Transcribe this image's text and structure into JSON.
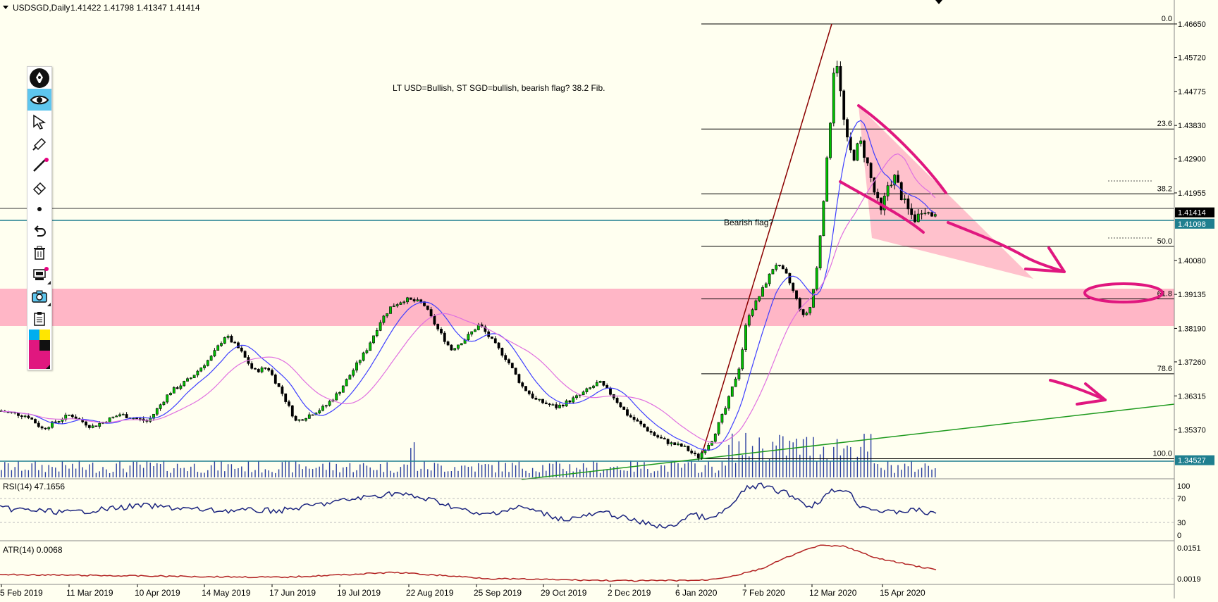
{
  "header": {
    "triangle_icon": "triangle-down-icon",
    "symbol": "USDSGD,Daily",
    "ohlc": "1.41422 1.41798 1.41347 1.41414"
  },
  "annotations": {
    "main_note": "LT USD=Bullish, ST SGD=bullish, bearish flag? 38.2 Fib.",
    "flag_note": "Bearish flag?"
  },
  "price_axis": {
    "ticks": [
      "1.46650",
      "1.45720",
      "1.44775",
      "1.43830",
      "1.42900",
      "1.41955",
      "1.41414",
      "1.41098",
      "1.40080",
      "1.39135",
      "1.38190",
      "1.37260",
      "1.36315",
      "1.35370",
      "1.34527"
    ],
    "current_price_label": "1.41414",
    "line_price_label": "1.41098",
    "bottom_price_label": "1.34527"
  },
  "fibonacci": [
    {
      "level": "0.0",
      "price": 1.4665
    },
    {
      "level": "23.6",
      "price": 1.4373
    },
    {
      "level": "38.2",
      "price": 1.4193
    },
    {
      "level": "50.0",
      "price": 1.4047
    },
    {
      "level": "61.8",
      "price": 1.3901
    },
    {
      "level": "78.6",
      "price": 1.3693
    },
    {
      "level": "100.0",
      "price": 1.3457
    }
  ],
  "date_axis": [
    "5 Feb 2019",
    "11 Mar 2019",
    "10 Apr 2019",
    "14 May 2019",
    "17 Jun 2019",
    "19 Jul 2019",
    "22 Aug 2019",
    "25 Sep 2019",
    "29 Oct 2019",
    "2 Dec 2019",
    "6 Jan 2020",
    "7 Feb 2020",
    "12 Mar 2020",
    "15 Apr 2020"
  ],
  "rsi": {
    "label": "RSI(14) 47.1656",
    "ticks": [
      "100",
      "70",
      "30",
      "0"
    ]
  },
  "atr": {
    "label": "ATR(14) 0.0068",
    "ticks": [
      "0.0151",
      "0.0019"
    ]
  },
  "toolbar": [
    {
      "name": "logo-pen-icon"
    },
    {
      "name": "eye-icon",
      "active": true
    },
    {
      "name": "cursor-arrow-icon"
    },
    {
      "name": "highlighter-icon"
    },
    {
      "name": "line-tool-icon",
      "dot": true
    },
    {
      "name": "eraser-icon"
    },
    {
      "name": "dot-icon"
    },
    {
      "name": "undo-icon"
    },
    {
      "name": "trash-icon"
    },
    {
      "name": "stamp-icon",
      "dot": true,
      "tri": true
    },
    {
      "name": "camera-icon",
      "tri": true
    },
    {
      "name": "clipboard-icon"
    },
    {
      "name": "color-palette-icon"
    }
  ],
  "colors": {
    "background": "#fffff0",
    "zone": "#ffb6c6",
    "magenta": "#e0177f",
    "ma_blue": "#3f3fff",
    "ma_pink": "#e070e0",
    "volume": "#2a3f9f",
    "trend_green": "#1e9a1e",
    "impulse": "#8b0000",
    "rsi": "#1a237e",
    "atr": "#b22222"
  }
}
